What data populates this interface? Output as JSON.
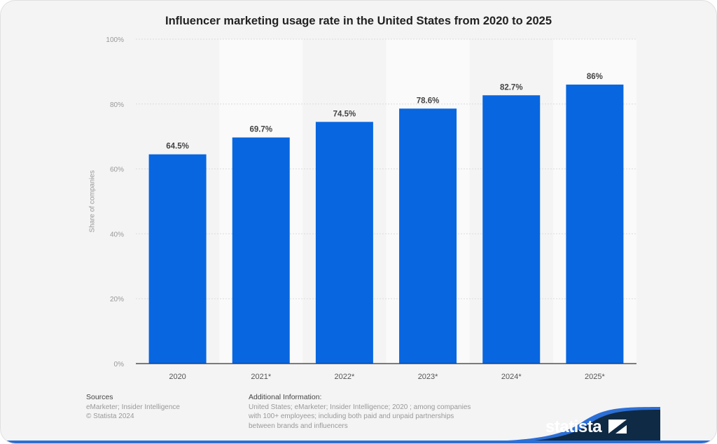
{
  "chart_data": {
    "type": "bar",
    "title": "Influencer marketing usage rate in the United States from 2020 to 2025",
    "ylabel": "Share of companies",
    "xlabel": "",
    "categories": [
      "2020",
      "2021*",
      "2022*",
      "2023*",
      "2024*",
      "2025*"
    ],
    "values": [
      64.5,
      69.7,
      74.5,
      78.6,
      82.7,
      86
    ],
    "data_labels": [
      "64.5%",
      "69.7%",
      "74.5%",
      "78.6%",
      "82.7%",
      "86%"
    ],
    "ylim": [
      0,
      100
    ],
    "yticks": [
      "0%",
      "20%",
      "40%",
      "60%",
      "80%",
      "100%"
    ],
    "grid": true,
    "bar_color": "#0866e0"
  },
  "footer": {
    "sources_heading": "Sources",
    "sources_line1": "eMarketer; Insider Intelligence",
    "sources_line2": "© Statista 2024",
    "info_heading": "Additional Information:",
    "info_line1": "United States; eMarketer; Insider Intelligence; 2020 ; among companies",
    "info_line2": "with 100+ employees; including both paid and unpaid partnerships",
    "info_line3": "between brands and influencers",
    "logo": "statista"
  }
}
